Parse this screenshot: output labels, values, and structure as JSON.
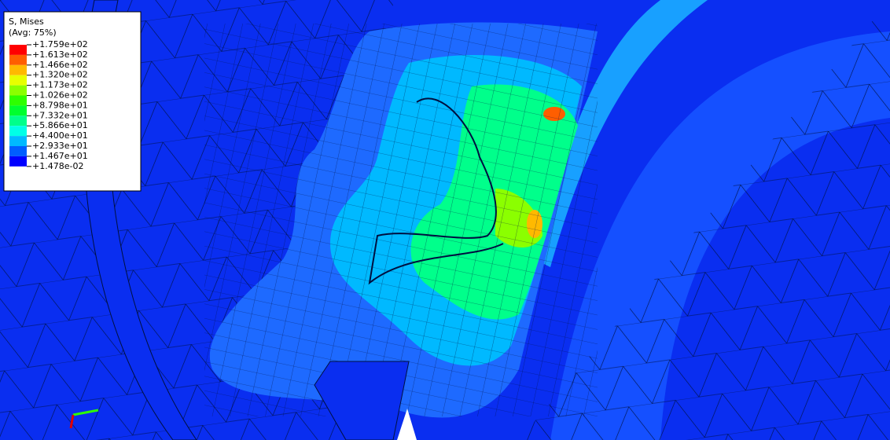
{
  "legend": {
    "title": "S, Mises",
    "subtitle": "(Avg: 75%)",
    "labels": [
      "+1.759e+02",
      "+1.613e+02",
      "+1.466e+02",
      "+1.320e+02",
      "+1.173e+02",
      "+1.026e+02",
      "+8.798e+01",
      "+7.332e+01",
      "+5.866e+01",
      "+4.400e+01",
      "+2.933e+01",
      "+1.467e+01",
      "+1.478e-02"
    ],
    "colors": [
      "#ff0000",
      "#ff5e00",
      "#ffb900",
      "#e7ff00",
      "#8bff00",
      "#2eff00",
      "#00ff2e",
      "#00ff8b",
      "#00ffe7",
      "#00b9ff",
      "#005eff",
      "#0000ff"
    ]
  }
}
